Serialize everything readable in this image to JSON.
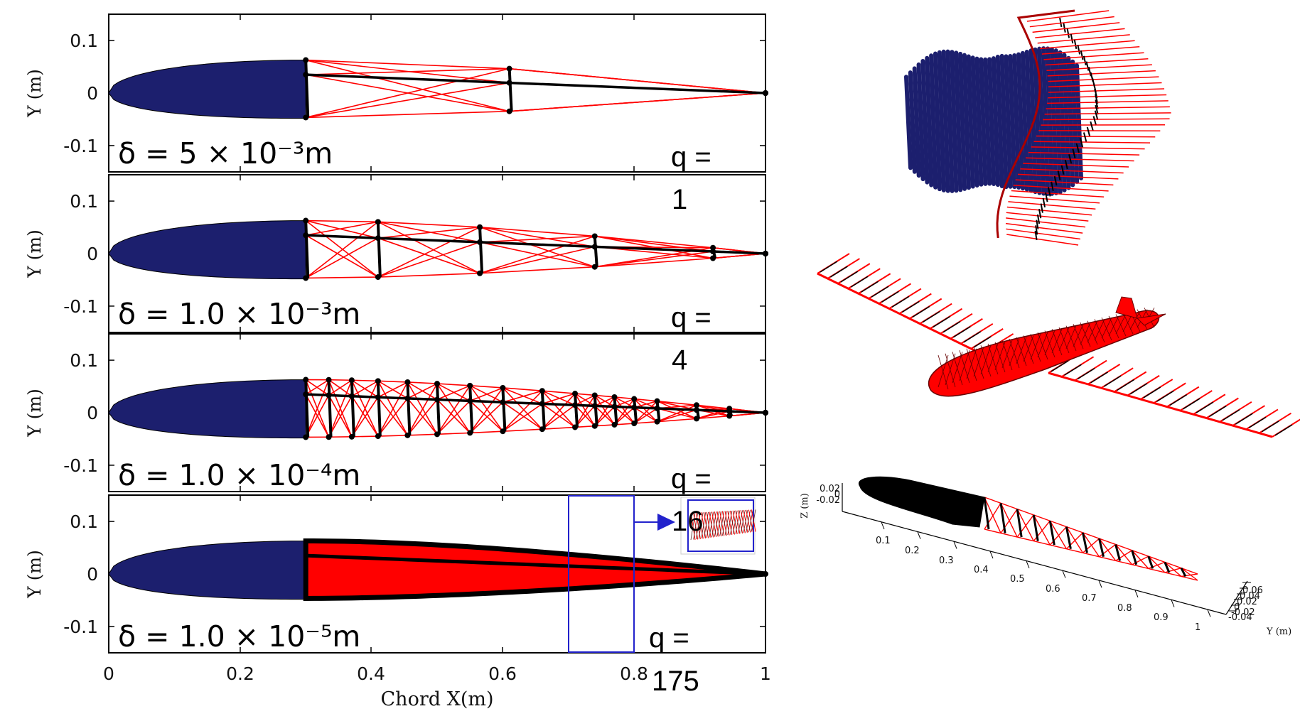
{
  "panels": [
    {
      "delta": "δ = 5 × 10⁻³m",
      "q_label": "q =",
      "q_value": "1"
    },
    {
      "delta": "δ = 1.0 × 10⁻³m",
      "q_label": "q =",
      "q_value": "4"
    },
    {
      "delta": "δ = 1.0 × 10⁻⁴m",
      "q_label": "q =",
      "q_value": "16"
    },
    {
      "delta": "δ = 1.0 × 10⁻⁵m",
      "q_label": "q =",
      "q_value": "175"
    }
  ],
  "axes": {
    "y_label": "Y (m)",
    "y_ticks": [
      "0.1",
      "0",
      "-0.1"
    ],
    "x_label": "Chord X(m)",
    "x_ticks": [
      "0",
      "0.2",
      "0.4",
      "0.6",
      "0.8",
      "1"
    ]
  },
  "view3d": {
    "z_label": "Z (m)",
    "z_ticks": [
      "0.02",
      "0",
      "-0.02"
    ],
    "x_ticks": [
      "0.1",
      "0.2",
      "0.3",
      "0.4",
      "0.5",
      "0.6",
      "0.7",
      "0.8",
      "0.9",
      "1"
    ],
    "y_ticks": [
      "0.06",
      "0.04",
      "0.02",
      "0",
      "-0.02",
      "-0.04"
    ],
    "y_label": "Y (m)"
  },
  "colors": {
    "airfoil": "#1c1f6e",
    "bars": "#000000",
    "strings": "#ff0000",
    "zoom_box": "#2222cc"
  }
}
